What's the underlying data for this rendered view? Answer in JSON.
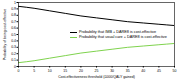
{
  "chart_data": {
    "type": "line",
    "x_label": "Cost-effectiveness threshold (£000/QALY gained)",
    "y_label": "Probability of being cost-effective",
    "x": [
      0,
      5,
      10,
      15,
      20,
      25,
      30,
      35,
      40,
      45,
      50
    ],
    "series": [
      {
        "name": "Probability that IMB + DARE8 is cost-effective",
        "color": "#000000",
        "values": [
          0.94,
          0.91,
          0.87,
          0.83,
          0.79,
          0.76,
          0.73,
          0.7,
          0.68,
          0.66,
          0.64
        ]
      },
      {
        "name": "Probability that usual care + DARE8 is cost-effective",
        "color": "#7fd34e",
        "values": [
          0.06,
          0.09,
          0.13,
          0.17,
          0.21,
          0.24,
          0.27,
          0.3,
          0.32,
          0.34,
          0.36
        ]
      }
    ],
    "xlim": [
      0,
      50
    ],
    "xticks": [
      0,
      5,
      10,
      15,
      20,
      25,
      30,
      35,
      40,
      45,
      50
    ],
    "ylim": [
      0,
      1
    ],
    "yticks": [
      0,
      0.1,
      0.2,
      0.3,
      0.4,
      0.5,
      0.6,
      0.7,
      0.8,
      0.9,
      1
    ],
    "legend": "right",
    "grid": false
  }
}
